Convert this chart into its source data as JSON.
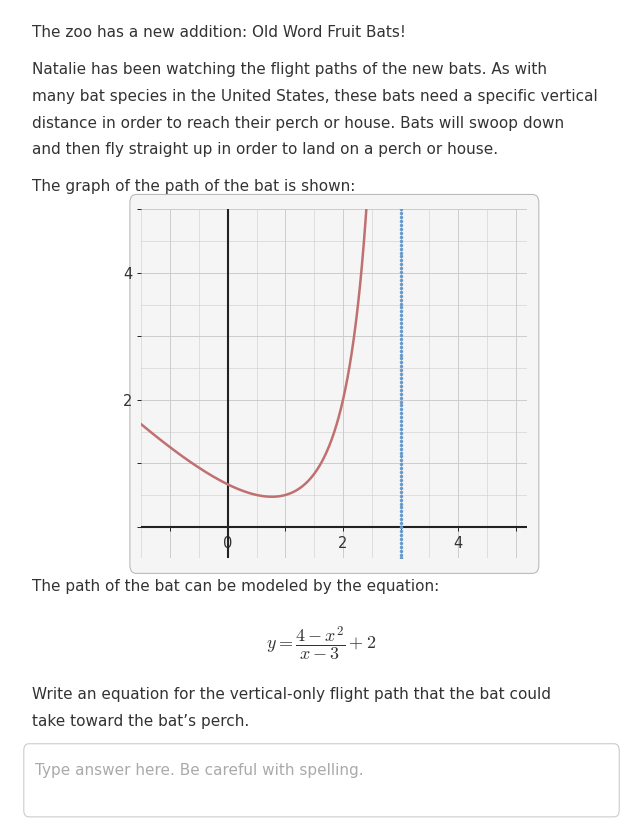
{
  "title_text": "The zoo has a new addition: Old Word Fruit Bats!",
  "para1_lines": [
    "Natalie has been watching the flight paths of the new bats. As with",
    "many bat species in the United States, these bats need a specific vertical",
    "distance in order to reach their perch or house. Bats will swoop down",
    "and then fly straight up in order to land on a perch or house."
  ],
  "para2": "The graph of the path of the bat is shown:",
  "para3": "The path of the bat can be modeled by the equation:",
  "para4_lines": [
    "Write an equation for the vertical-only flight path that the bat could",
    "take toward the bat’s perch."
  ],
  "answer_placeholder": "Type answer here. Be careful with spelling.",
  "curve_color": "#c07070",
  "dotted_line_color": "#6699cc",
  "axis_color": "#222222",
  "grid_color": "#cccccc",
  "bg_color": "#ffffff",
  "graph_bg": "#f5f5f5",
  "text_color": "#333333",
  "placeholder_color": "#aaaaaa",
  "x_min": -1.5,
  "x_max": 5.2,
  "y_min": -0.5,
  "y_max": 5.0,
  "x_asymptote": 3.0,
  "fig_width": 6.43,
  "fig_height": 8.31,
  "fontsize_body": 11.0,
  "fontsize_eq": 13.0
}
